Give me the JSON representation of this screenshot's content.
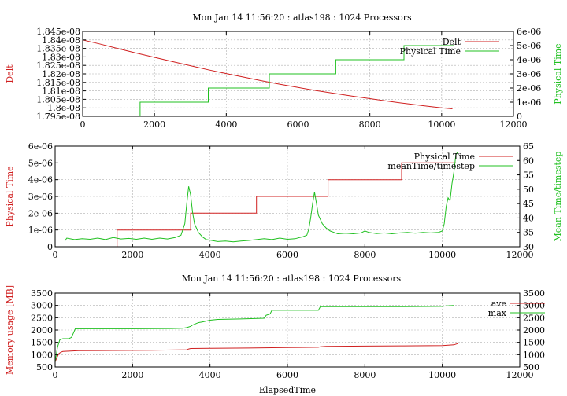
{
  "chart_data": [
    {
      "id": "top",
      "type": "line",
      "title": "Mon Jan 14 11:56:20 : atlas198 : 1024 Processors",
      "xlabel": "",
      "xlim": [
        0,
        12000
      ],
      "xticks": [
        "0",
        "2000",
        "4000",
        "6000",
        "8000",
        "10000",
        "12000"
      ],
      "ylabel_left": "Delt",
      "ylim_left": [
        1.795e-08,
        1.845e-08
      ],
      "yticks_left": [
        1.795e-08,
        1.8e-08,
        1.805e-08,
        1.81e-08,
        1.815e-08,
        1.82e-08,
        1.825e-08,
        1.83e-08,
        1.835e-08,
        1.84e-08,
        1.845e-08
      ],
      "yticklabels_left": [
        "1.795e-08",
        "1.8e-08",
        "1.805e-08",
        "1.81e-08",
        "1.815e-08",
        "1.82e-08",
        "1.825e-08",
        "1.83e-08",
        "1.835e-08",
        "1.84e-08",
        "1.845e-08"
      ],
      "ylabel_right": "Physical Time",
      "ylim_right": [
        0,
        6e-06
      ],
      "yticks_right": [
        0,
        1e-06,
        2e-06,
        3e-06,
        4e-06,
        5e-06,
        6e-06
      ],
      "yticklabels_right": [
        "0",
        "1e-06",
        "2e-06",
        "3e-06",
        "4e-06",
        "5e-06",
        "6e-06"
      ],
      "grid": true,
      "legend": "top-right",
      "series": [
        {
          "name": "Delt",
          "axis": "left",
          "color": "#d02020",
          "x": [
            0,
            500,
            1000,
            1500,
            2000,
            2500,
            3000,
            3500,
            4000,
            4500,
            5000,
            5500,
            6000,
            6500,
            7000,
            7500,
            8000,
            8500,
            9000,
            9500,
            10000,
            10300
          ],
          "y": [
            1.84e-08,
            1.8375e-08,
            1.8348e-08,
            1.8322e-08,
            1.8297e-08,
            1.8272e-08,
            1.8248e-08,
            1.8224e-08,
            1.8202e-08,
            1.818e-08,
            1.8159e-08,
            1.8139e-08,
            1.812e-08,
            1.8102e-08,
            1.8085e-08,
            1.8069e-08,
            1.8054e-08,
            1.8039e-08,
            1.8025e-08,
            1.8012e-08,
            1.8e-08,
            1.7994e-08
          ]
        },
        {
          "name": "Physical Time",
          "axis": "right",
          "color": "#20c020",
          "step": true,
          "x": [
            1600,
            1600,
            3500,
            3500,
            5200,
            5200,
            7050,
            7050,
            8950,
            8950,
            10350
          ],
          "y": [
            0,
            1e-06,
            1e-06,
            2e-06,
            2e-06,
            3e-06,
            3e-06,
            4e-06,
            4e-06,
            5e-06,
            5e-06
          ]
        }
      ]
    },
    {
      "id": "middle",
      "type": "line",
      "title": "",
      "xlabel": "",
      "xlim": [
        0,
        12000
      ],
      "xticks": [
        "0",
        "2000",
        "4000",
        "6000",
        "8000",
        "10000",
        "12000"
      ],
      "ylabel_left": "Physical Time",
      "ylim_left": [
        0,
        6e-06
      ],
      "yticks_left": [
        0,
        1e-06,
        2e-06,
        3e-06,
        4e-06,
        5e-06,
        6e-06
      ],
      "yticklabels_left": [
        "0",
        "1e-06",
        "2e-06",
        "3e-06",
        "4e-06",
        "5e-06",
        "6e-06"
      ],
      "ylabel_right": "Mean Time/timestep",
      "ylim_right": [
        30,
        65
      ],
      "yticks_right": [
        30,
        35,
        40,
        45,
        50,
        55,
        60,
        65
      ],
      "yticklabels_right": [
        "30",
        "35",
        "40",
        "45",
        "50",
        "55",
        "60",
        "65"
      ],
      "grid": true,
      "legend": "top-right",
      "series": [
        {
          "name": "Physical Time",
          "axis": "left",
          "color": "#d02020",
          "step": true,
          "x": [
            1600,
            1600,
            3500,
            3500,
            5200,
            5200,
            7050,
            7050,
            8950,
            8950,
            10350
          ],
          "y": [
            0,
            1e-06,
            1e-06,
            2e-06,
            2e-06,
            3e-06,
            3e-06,
            4e-06,
            4e-06,
            5e-06,
            5e-06
          ]
        },
        {
          "name": "meanTime/timestep",
          "axis": "right",
          "color": "#20c020",
          "x": [
            250,
            300,
            500,
            700,
            900,
            1100,
            1300,
            1500,
            1700,
            1900,
            2100,
            2300,
            2500,
            2700,
            2900,
            3100,
            3250,
            3350,
            3400,
            3450,
            3500,
            3550,
            3600,
            3700,
            3800,
            3900,
            4000,
            4200,
            4400,
            4600,
            4800,
            5000,
            5200,
            5400,
            5600,
            5800,
            6000,
            6200,
            6400,
            6500,
            6550,
            6600,
            6650,
            6700,
            6750,
            6800,
            6900,
            7000,
            7100,
            7200,
            7300,
            7500,
            7700,
            7900,
            8000,
            8100,
            8300,
            8500,
            8700,
            8900,
            9100,
            9300,
            9500,
            9700,
            9900,
            10000,
            10050,
            10100,
            10150,
            10200,
            10250,
            10300,
            10350,
            10400
          ],
          "y": [
            32,
            33,
            32.5,
            32.8,
            32.6,
            33,
            32.5,
            33.2,
            32.7,
            32.9,
            32.6,
            33,
            32.6,
            33,
            32.7,
            33.2,
            34,
            38,
            45,
            51,
            48,
            42,
            38,
            35,
            33.5,
            32.5,
            32.3,
            31.8,
            32,
            31.7,
            32,
            32.2,
            32.5,
            32.8,
            32.5,
            33,
            32.6,
            32.8,
            33.5,
            34,
            36,
            40,
            45,
            49,
            45,
            41,
            38,
            36.5,
            35.5,
            35,
            34.5,
            34.7,
            34.5,
            34.8,
            35.5,
            35,
            34.6,
            34.8,
            34.5,
            34.8,
            35,
            34.7,
            35,
            34.8,
            35,
            35.5,
            38,
            44,
            47,
            46,
            52,
            56,
            62,
            63
          ]
        }
      ]
    },
    {
      "id": "bottom",
      "type": "line",
      "title": "Mon Jan 14 11:56:20 : atlas198 : 1024 Processors",
      "xlabel": "ElapsedTime",
      "xlim": [
        0,
        12000
      ],
      "xticks": [
        "0",
        "2000",
        "4000",
        "6000",
        "8000",
        "10000",
        "12000"
      ],
      "ylabel_left": "Memory usage [MB]",
      "ylim_left": [
        500,
        3500
      ],
      "yticks_left": [
        500,
        1000,
        1500,
        2000,
        2500,
        3000,
        3500
      ],
      "yticklabels_left": [
        "500",
        "1000",
        "1500",
        "2000",
        "2500",
        "3000",
        "3500"
      ],
      "ylabel_right": "",
      "ylim_right": [
        500,
        3500
      ],
      "yticks_right": [
        500,
        1000,
        1500,
        2000,
        2500,
        3000,
        3500
      ],
      "yticklabels_right": [
        "500",
        "1000",
        "1500",
        "2000",
        "2500",
        "3000",
        "3500"
      ],
      "grid": true,
      "legend": "top-right",
      "series": [
        {
          "name": "ave",
          "axis": "left",
          "color": "#d02020",
          "x": [
            0,
            50,
            100,
            150,
            200,
            600,
            1500,
            2500,
            3400,
            3450,
            3500,
            4000,
            5000,
            6000,
            6800,
            6850,
            7000,
            8000,
            9000,
            10000,
            10300,
            10400
          ],
          "y": [
            700,
            900,
            1050,
            1100,
            1130,
            1160,
            1170,
            1180,
            1200,
            1230,
            1250,
            1260,
            1270,
            1290,
            1300,
            1320,
            1340,
            1350,
            1360,
            1370,
            1400,
            1450
          ]
        },
        {
          "name": "max",
          "axis": "left",
          "color": "#20c020",
          "x": [
            0,
            60,
            120,
            200,
            350,
            420,
            480,
            520,
            1000,
            2000,
            3000,
            3300,
            3400,
            3500,
            3550,
            3700,
            3800,
            4000,
            4200,
            4800,
            5400,
            5450,
            5550,
            5600,
            6500,
            6800,
            6850,
            8000,
            9000,
            10000,
            10100,
            10300
          ],
          "y": [
            700,
            1300,
            1600,
            1650,
            1650,
            1700,
            1900,
            2050,
            2050,
            2050,
            2060,
            2070,
            2100,
            2150,
            2200,
            2300,
            2330,
            2400,
            2430,
            2450,
            2480,
            2600,
            2650,
            2800,
            2800,
            2800,
            2950,
            2950,
            2950,
            2960,
            2980,
            3000
          ]
        }
      ]
    }
  ]
}
